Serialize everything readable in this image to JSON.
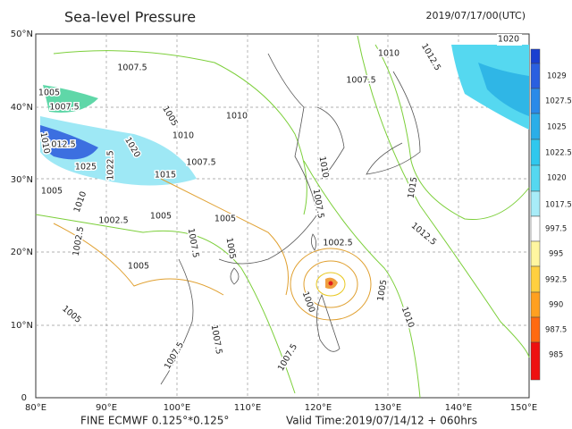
{
  "header": {
    "title": "Sea-level Pressure",
    "time": "2019/07/17/00(UTC)"
  },
  "axes": {
    "lat": [
      "50°N",
      "40°N",
      "30°N",
      "20°N",
      "10°N",
      "0"
    ],
    "lon": [
      "80°E",
      "90°E",
      "100°E",
      "110°E",
      "120°E",
      "130°E",
      "140°E",
      "150°E"
    ]
  },
  "colorbar": [
    "1029",
    "1027.5",
    "1025",
    "1022.5",
    "1020",
    "1017.5",
    "997.5",
    "995",
    "992.5",
    "990",
    "987.5",
    "985"
  ],
  "footer": {
    "model": "FINE ECMWF 0.125°*0.125°",
    "valid": "Valid Time:2019/07/14/12 + 060hrs"
  },
  "contour_labels": [
    "1020",
    "1010",
    "1012.5",
    "1007.5",
    "1007.5",
    "1005",
    "1007.5",
    "1005",
    "1010",
    "1010",
    "1012.5",
    "1020",
    "1025",
    "1022.5",
    "1015",
    "1010",
    "1005",
    "1010",
    "1007.5",
    "1002.5",
    "1005",
    "1005",
    "1005",
    "1007.5",
    "1002.5",
    "1005",
    "1010",
    "1007.5",
    "1002.5",
    "1000",
    "1005",
    "1010",
    "1012.5",
    "1015",
    "1005",
    "1007.5",
    "1007.5",
    "1007.5"
  ]
}
